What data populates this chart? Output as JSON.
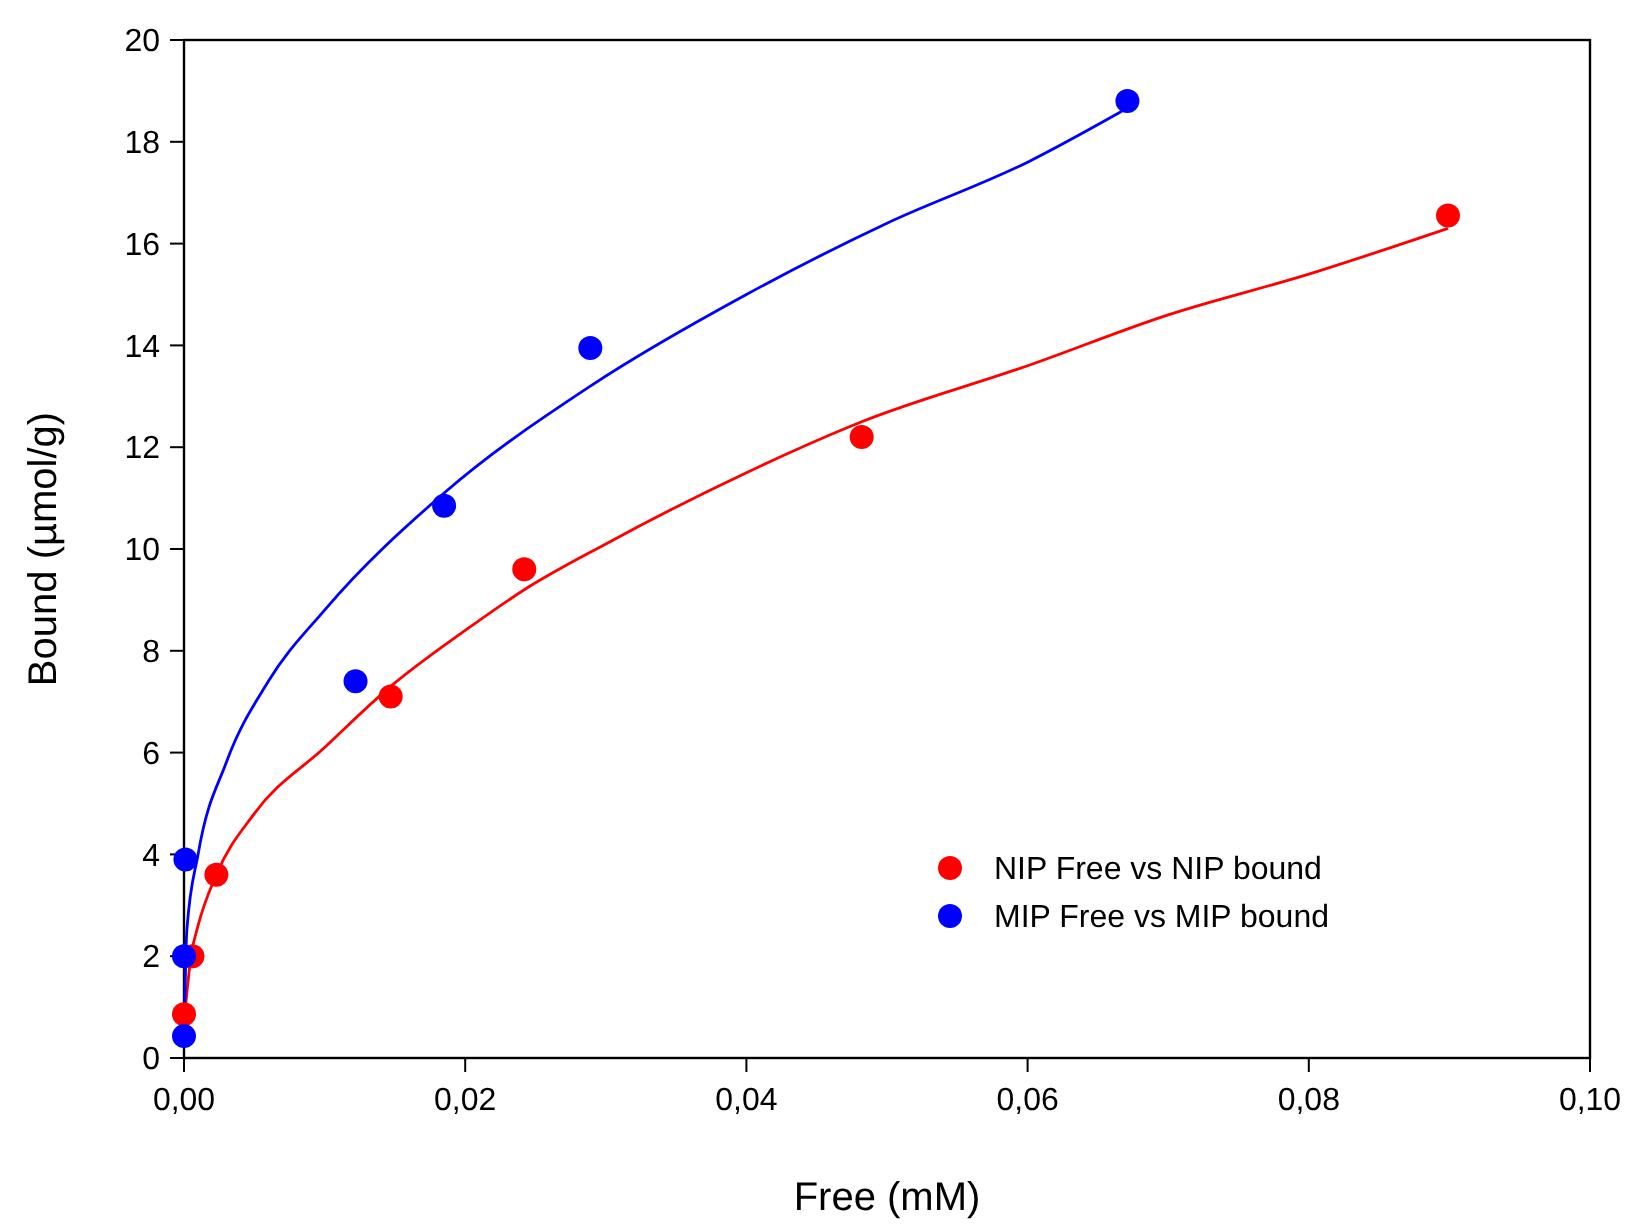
{
  "chart_data": {
    "type": "scatter",
    "xlabel": "Free (mM)",
    "ylabel": "Bound (µmol/g)",
    "xlim": [
      0,
      0.1
    ],
    "ylim": [
      0,
      20
    ],
    "xticks": [
      {
        "value": 0,
        "label": "0,00"
      },
      {
        "value": 0.02,
        "label": "0,02"
      },
      {
        "value": 0.04,
        "label": "0,04"
      },
      {
        "value": 0.06,
        "label": "0,06"
      },
      {
        "value": 0.08,
        "label": "0,08"
      },
      {
        "value": 0.1,
        "label": "0,10"
      }
    ],
    "yticks": [
      0,
      2,
      4,
      6,
      8,
      10,
      12,
      14,
      16,
      18,
      20
    ],
    "grid": false,
    "legend": "bottom right",
    "marker": "circle",
    "series": [
      {
        "type": "line",
        "color": "#ff0000",
        "marker": "none",
        "x": [
          0.0001,
          0.0005,
          0.001,
          0.0023,
          0.005,
          0.01,
          0.0147,
          0.02,
          0.0242,
          0.03,
          0.04,
          0.0482,
          0.06,
          0.07,
          0.08,
          0.0899
        ],
        "values": [
          1.0,
          2.0,
          2.6,
          3.6,
          4.8,
          6.1,
          7.3,
          8.4,
          9.2,
          10.1,
          11.5,
          12.5,
          13.6,
          14.6,
          15.4,
          16.3
        ]
      },
      {
        "type": "line",
        "color": "#0000ff",
        "marker": "none",
        "x": [
          0,
          0.0002,
          0.001,
          0.003,
          0.006,
          0.01,
          0.0185,
          0.0289,
          0.04,
          0.05,
          0.06,
          0.0667
        ],
        "values": [
          0.3,
          2.5,
          4.0,
          5.8,
          7.4,
          8.8,
          11.1,
          13.2,
          15.0,
          16.4,
          17.6,
          18.6
        ]
      },
      {
        "name": "NIP Free vs NIP bound",
        "color": "#ff0000",
        "x": [
          0,
          0.0006,
          0.0023,
          0.0147,
          0.0242,
          0.0482,
          0.0899
        ],
        "values": [
          0.86,
          2.0,
          3.6,
          7.1,
          9.6,
          12.2,
          16.55
        ]
      },
      {
        "name": "MIP Free vs MIP bound",
        "color": "#0000ff",
        "x": [
          0,
          0,
          0.0001,
          0.0122,
          0.0185,
          0.0289,
          0.0671
        ],
        "values": [
          0.43,
          2.0,
          3.9,
          7.4,
          10.85,
          13.95,
          18.8
        ]
      }
    ]
  }
}
